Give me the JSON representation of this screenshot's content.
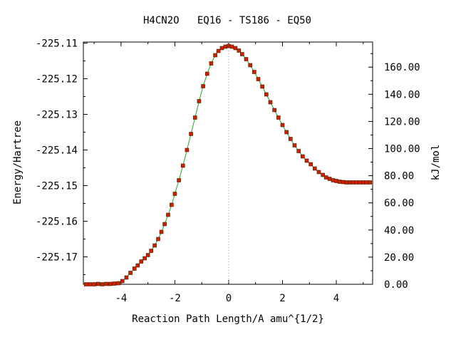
{
  "chart_data": {
    "type": "line",
    "title": "H4CN2O   EQ16 - TS186 - EQ50",
    "xlabel": "Reaction Path Length/A amu^{1/2}",
    "ylabel": "Energy/Hartree",
    "y2label": "kJ/mol",
    "xlim": [
      -5.4,
      5.35
    ],
    "ylim": [
      -225.1777,
      -225.1097
    ],
    "y2lim": [
      0.0,
      178.5
    ],
    "x_ticks": [
      -4,
      -2,
      0,
      2,
      4
    ],
    "x_tick_labels": [
      "-4",
      "-2",
      "0",
      "2",
      "4"
    ],
    "y_ticks": [
      -225.11,
      -225.12,
      -225.13,
      -225.14,
      -225.15,
      -225.16,
      -225.17
    ],
    "y_tick_labels": [
      "-225.11",
      "-225.12",
      "-225.13",
      "-225.14",
      "-225.15",
      "-225.16",
      "-225.17"
    ],
    "y2_ticks": [
      0,
      20,
      40,
      60,
      80,
      100,
      120,
      140,
      160
    ],
    "y2_tick_labels": [
      "0.00",
      "20.00",
      "40.00",
      "60.00",
      "80.00",
      "100.00",
      "120.00",
      "140.00",
      "160.00"
    ],
    "vline_x": 0,
    "colors": {
      "line": "#22aa22",
      "marker": "#cc2200",
      "vline": "#999999"
    },
    "series": [
      {
        "x": [
          -5.3,
          -5.15,
          -5.0,
          -4.85,
          -4.7,
          -4.55,
          -4.4,
          -4.25,
          -4.1,
          -3.95,
          -3.8,
          -3.65,
          -3.5,
          -3.38,
          -3.25,
          -3.12,
          -3.0,
          -2.88,
          -2.75,
          -2.62,
          -2.5,
          -2.38,
          -2.25,
          -2.12,
          -2.0,
          -1.85,
          -1.7,
          -1.55,
          -1.4,
          -1.25,
          -1.1,
          -0.95,
          -0.8,
          -0.65,
          -0.5,
          -0.38,
          -0.25,
          -0.12,
          0.0,
          0.12,
          0.25,
          0.38,
          0.5,
          0.65,
          0.8,
          0.95,
          1.1,
          1.25,
          1.4,
          1.55,
          1.7,
          1.85,
          2.0,
          2.15,
          2.3,
          2.45,
          2.6,
          2.75,
          2.9,
          3.05,
          3.2,
          3.35,
          3.5,
          3.62,
          3.75,
          3.88,
          4.0,
          4.12,
          4.25,
          4.38,
          4.5,
          4.62,
          4.75,
          4.88,
          5.0,
          5.12,
          5.25
        ],
        "y": [
          -225.1777,
          -225.1777,
          -225.1777,
          -225.1776,
          -225.1777,
          -225.1776,
          -225.1776,
          -225.1775,
          -225.1774,
          -225.1768,
          -225.1758,
          -225.1745,
          -225.1733,
          -225.1724,
          -225.1713,
          -225.1704,
          -225.1695,
          -225.1683,
          -225.1668,
          -225.165,
          -225.163,
          -225.1608,
          -225.1582,
          -225.1554,
          -225.1523,
          -225.1485,
          -225.1444,
          -225.14,
          -225.1355,
          -225.1309,
          -225.1263,
          -225.1221,
          -225.1186,
          -225.1157,
          -225.1134,
          -225.1122,
          -225.1114,
          -225.111,
          -225.1108,
          -225.111,
          -225.1114,
          -225.1121,
          -225.1131,
          -225.1145,
          -225.1162,
          -225.1181,
          -225.1201,
          -225.1222,
          -225.1244,
          -225.1266,
          -225.1288,
          -225.1309,
          -225.133,
          -225.135,
          -225.1369,
          -225.1387,
          -225.1403,
          -225.1418,
          -225.143,
          -225.144,
          -225.1452,
          -225.1462,
          -225.147,
          -225.1477,
          -225.1481,
          -225.1485,
          -225.1487,
          -225.1489,
          -225.149,
          -225.1491,
          -225.1491,
          -225.1491,
          -225.1491,
          -225.1491,
          -225.1491,
          -225.1491,
          -225.1491
        ]
      }
    ]
  }
}
